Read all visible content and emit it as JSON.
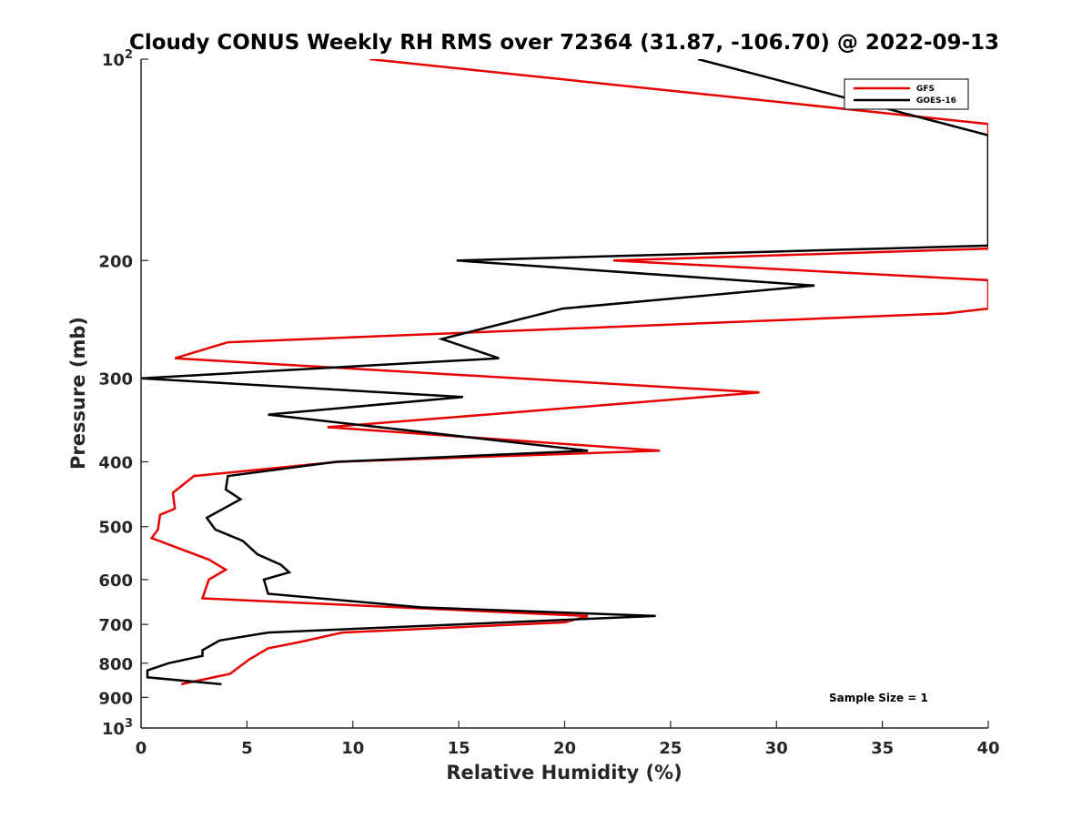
{
  "chart_data": {
    "type": "line",
    "title": "Cloudy CONUS Weekly RH RMS over 72364 (31.87, -106.70) @ 2022-09-13",
    "xlabel": "Relative Humidity (%)",
    "ylabel": "Pressure (mb)",
    "xlim": [
      0,
      40
    ],
    "ylim": [
      100,
      1000
    ],
    "y_scale": "log",
    "y_reversed": true,
    "grid": false,
    "legend_position": "top-right",
    "x_ticks": [
      "0",
      "5",
      "10",
      "15",
      "20",
      "25",
      "30",
      "35",
      "40"
    ],
    "y_ticks": [
      {
        "value": 100,
        "base": "10",
        "exp": "2"
      },
      {
        "value": 200,
        "label": "200"
      },
      {
        "value": 300,
        "label": "300"
      },
      {
        "value": 400,
        "label": "400"
      },
      {
        "value": 500,
        "label": "500"
      },
      {
        "value": 600,
        "label": "600"
      },
      {
        "value": 700,
        "label": "700"
      },
      {
        "value": 800,
        "label": "800"
      },
      {
        "value": 900,
        "label": "900"
      },
      {
        "value": 1000,
        "base": "10",
        "exp": "3"
      }
    ],
    "annotation": "Sample Size = 1",
    "series": [
      {
        "name": "GFS",
        "color": "#e60000",
        "points": [
          [
            10.8,
            100
          ],
          [
            40,
            125
          ],
          [
            40,
            192
          ],
          [
            22.3,
            200
          ],
          [
            40,
            214
          ],
          [
            40,
            236
          ],
          [
            38,
            240
          ],
          [
            4.1,
            265
          ],
          [
            1.6,
            280
          ],
          [
            29.2,
            315
          ],
          [
            16.3,
            340
          ],
          [
            8.8,
            355
          ],
          [
            24.5,
            385
          ],
          [
            9.3,
            400
          ],
          [
            2.5,
            420
          ],
          [
            1.5,
            445
          ],
          [
            1.6,
            470
          ],
          [
            0.9,
            480
          ],
          [
            0.8,
            505
          ],
          [
            0.5,
            520
          ],
          [
            3.2,
            560
          ],
          [
            4.0,
            580
          ],
          [
            3.2,
            600
          ],
          [
            2.9,
            640
          ],
          [
            21.1,
            680
          ],
          [
            20.0,
            695
          ],
          [
            9.5,
            720
          ],
          [
            7.4,
            745
          ],
          [
            6.0,
            760
          ],
          [
            5.1,
            790
          ],
          [
            4.2,
            830
          ],
          [
            1.9,
            860
          ]
        ]
      },
      {
        "name": "GOES-16",
        "color": "#000000",
        "points": [
          [
            26.3,
            100
          ],
          [
            40,
            130
          ],
          [
            40,
            190
          ],
          [
            14.9,
            200
          ],
          [
            31.8,
            218
          ],
          [
            19.9,
            236
          ],
          [
            14.2,
            262
          ],
          [
            16.9,
            280
          ],
          [
            0.0,
            300
          ],
          [
            15.2,
            320
          ],
          [
            6.0,
            340
          ],
          [
            21.1,
            385
          ],
          [
            9.2,
            400
          ],
          [
            4.1,
            420
          ],
          [
            4.0,
            440
          ],
          [
            4.7,
            455
          ],
          [
            3.1,
            485
          ],
          [
            3.5,
            505
          ],
          [
            4.8,
            525
          ],
          [
            5.5,
            550
          ],
          [
            6.6,
            570
          ],
          [
            7.0,
            585
          ],
          [
            5.8,
            600
          ],
          [
            6.0,
            630
          ],
          [
            13.2,
            660
          ],
          [
            24.3,
            680
          ],
          [
            6.0,
            720
          ],
          [
            3.7,
            740
          ],
          [
            2.9,
            765
          ],
          [
            2.9,
            780
          ],
          [
            1.3,
            800
          ],
          [
            0.3,
            820
          ],
          [
            0.3,
            840
          ],
          [
            3.8,
            860
          ]
        ]
      }
    ]
  }
}
